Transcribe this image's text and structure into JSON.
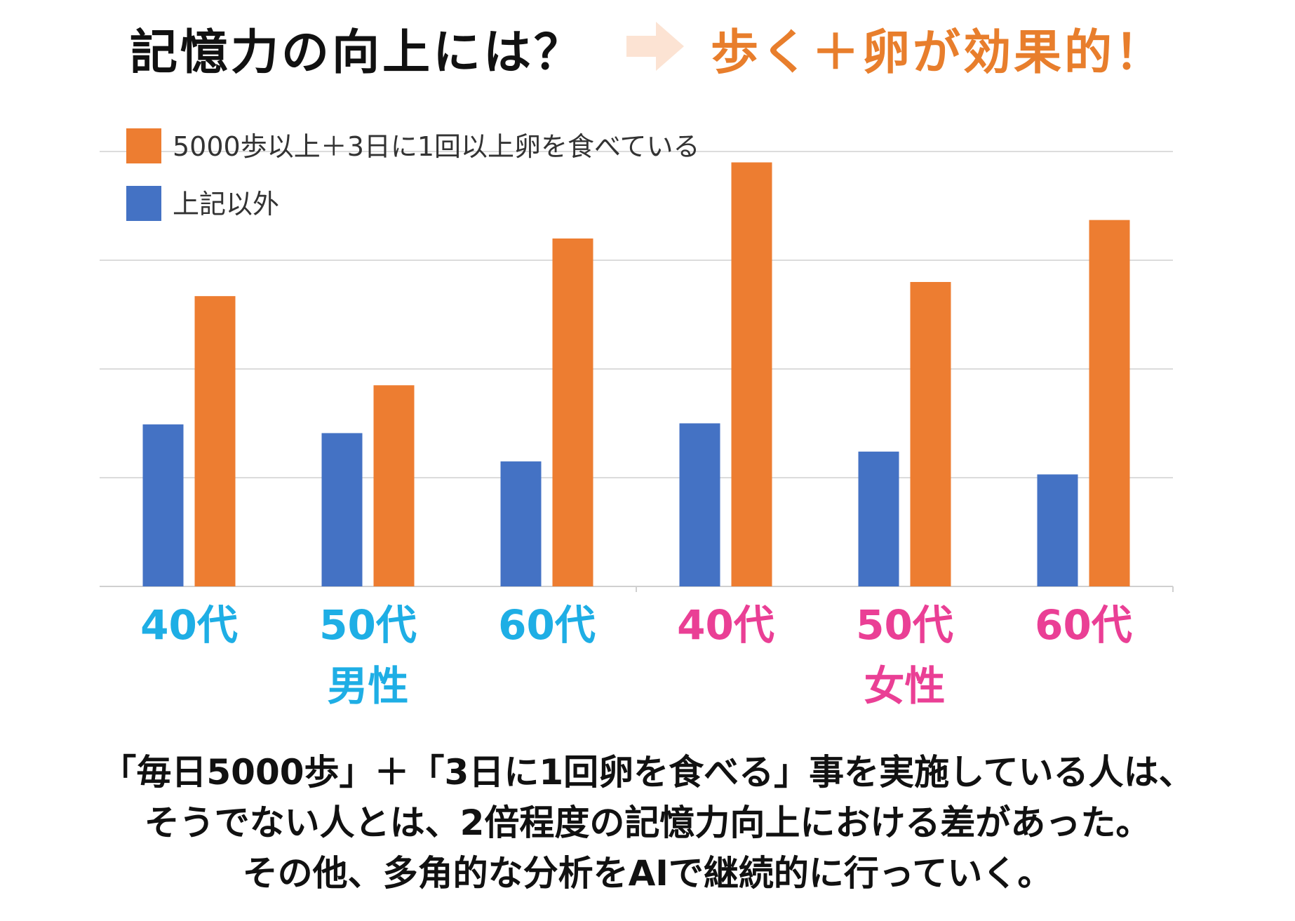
{
  "headline": {
    "question": "記憶力の向上には？",
    "answer": "歩く＋卵が効果的！",
    "answer_color": "#E87E2C",
    "arrow_color": "#FCE3D3",
    "arrow_icon": "right-arrow-icon"
  },
  "chart_data": {
    "type": "bar",
    "categories": [
      "40代",
      "50代",
      "60代",
      "40代",
      "50代",
      "60代"
    ],
    "groups": [
      {
        "label": "男性",
        "color": "#1EAEE5",
        "categories": [
          "40代",
          "50代",
          "60代"
        ]
      },
      {
        "label": "女性",
        "color": "#EA3F95",
        "categories": [
          "40代",
          "50代",
          "60代"
        ]
      }
    ],
    "series": [
      {
        "name": "上記以外",
        "color": "#4472C4",
        "values": [
          1.49,
          1.41,
          1.15,
          1.5,
          1.24,
          1.03
        ]
      },
      {
        "name": "5000歩以上＋3日に1回以上卵を食べている",
        "color": "#ED7D31",
        "values": [
          2.67,
          1.85,
          3.2,
          3.9,
          2.8,
          3.37
        ]
      }
    ],
    "ylim": [
      0,
      4
    ],
    "yticks": [
      0,
      1,
      2,
      3,
      4
    ],
    "grid": true,
    "legend_placement": "top-left",
    "legend_order": [
      "5000歩以上＋3日に1回以上卵を食べている",
      "上記以外"
    ],
    "show_y_tick_labels": false
  },
  "conclusion": {
    "lines": [
      "「毎日5000歩」＋「3日に1回卵を食べる」事を実施している人は、",
      "そうでない人とは、2倍程度の記憶力向上における差があった。",
      "その他、多角的な分析をAIで継続的に行っていく。"
    ]
  }
}
